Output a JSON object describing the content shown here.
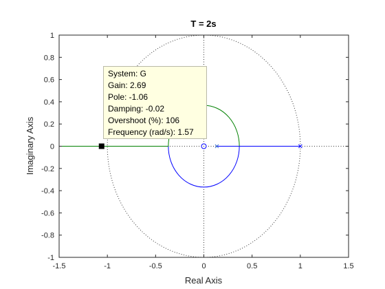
{
  "chart_data": {
    "type": "root-locus",
    "title": "T = 2s",
    "xlabel": "Real Axis",
    "ylabel": "Imaginary Axis",
    "xlim": [
      -1.5,
      1.5
    ],
    "ylim": [
      -1,
      1
    ],
    "xticks": [
      "-1.5",
      "-1",
      "-0.5",
      "0",
      "0.5",
      "1",
      "1.5"
    ],
    "xtick_values": [
      -1.5,
      -1,
      -0.5,
      0,
      0.5,
      1,
      1.5
    ],
    "yticks": [
      "1",
      "0.8",
      "0.6",
      "0.4",
      "0.2",
      "0",
      "-0.2",
      "-0.4",
      "-0.6",
      "-0.8",
      "-1"
    ],
    "ytick_values": [
      1,
      0.8,
      0.6,
      0.4,
      0.2,
      0,
      -0.2,
      -0.4,
      -0.6,
      -0.8,
      -1
    ],
    "grid": false,
    "unit_circle": true,
    "poles": [
      {
        "x": 0.135,
        "y": 0,
        "color": "#3a6fd8"
      },
      {
        "x": 1.0,
        "y": 0,
        "color": "#0000ff"
      }
    ],
    "zeros": [
      {
        "x": 0.0,
        "y": 0,
        "color": "#0000ff"
      }
    ],
    "series": [
      {
        "color": "#0000ff",
        "branch": "blue",
        "segments": [
          {
            "kind": "line",
            "points": [
              [
                0.135,
                0
              ],
              [
                1.0,
                0
              ]
            ]
          },
          {
            "kind": "circle-lower",
            "center": [
              0.0,
              0
            ],
            "radius": 0.368
          }
        ]
      },
      {
        "color": "#008000",
        "branch": "green",
        "segments": [
          {
            "kind": "line",
            "points": [
              [
                -1.5,
                0
              ],
              [
                -0.368,
                0
              ]
            ]
          },
          {
            "kind": "circle-upper",
            "center": [
              0.0,
              0
            ],
            "radius": 0.368
          }
        ]
      }
    ],
    "marker": {
      "x": -1.06,
      "y": 0
    },
    "datatip": {
      "system": "System: G",
      "gain": "Gain: 2.69",
      "pole": "Pole: -1.06",
      "damping": "Damping: -0.02",
      "overshoot": "Overshoot (%): 106",
      "frequency": "Frequency (rad/s): 1.57"
    },
    "colors": {
      "axis": "#262626",
      "unit_circle": "#333333"
    }
  }
}
